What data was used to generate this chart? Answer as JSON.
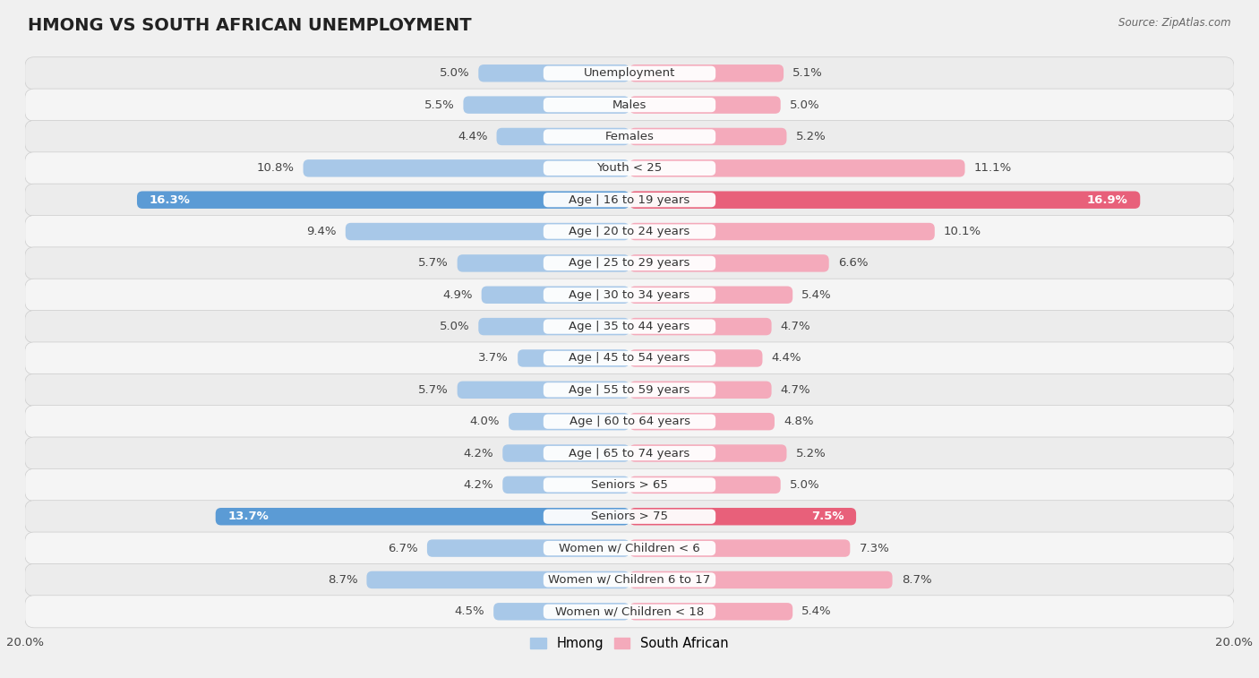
{
  "title": "HMONG VS SOUTH AFRICAN UNEMPLOYMENT",
  "source": "Source: ZipAtlas.com",
  "categories": [
    "Unemployment",
    "Males",
    "Females",
    "Youth < 25",
    "Age | 16 to 19 years",
    "Age | 20 to 24 years",
    "Age | 25 to 29 years",
    "Age | 30 to 34 years",
    "Age | 35 to 44 years",
    "Age | 45 to 54 years",
    "Age | 55 to 59 years",
    "Age | 60 to 64 years",
    "Age | 65 to 74 years",
    "Seniors > 65",
    "Seniors > 75",
    "Women w/ Children < 6",
    "Women w/ Children 6 to 17",
    "Women w/ Children < 18"
  ],
  "hmong": [
    5.0,
    5.5,
    4.4,
    10.8,
    16.3,
    9.4,
    5.7,
    4.9,
    5.0,
    3.7,
    5.7,
    4.0,
    4.2,
    4.2,
    13.7,
    6.7,
    8.7,
    4.5
  ],
  "south_african": [
    5.1,
    5.0,
    5.2,
    11.1,
    16.9,
    10.1,
    6.6,
    5.4,
    4.7,
    4.4,
    4.7,
    4.8,
    5.2,
    5.0,
    7.5,
    7.3,
    8.7,
    5.4
  ],
  "hmong_color": "#A8C8E8",
  "south_african_color": "#F4AABB",
  "hmong_highlight_color": "#5B9BD5",
  "south_african_highlight_color": "#E8607A",
  "highlight_rows": [
    4,
    14
  ],
  "row_colors": [
    "#ECECEC",
    "#F5F5F5"
  ],
  "bar_height": 0.55,
  "xlim": 20.0,
  "title_fontsize": 14,
  "label_fontsize": 9.5,
  "tick_fontsize": 9.5,
  "cat_fontsize": 9.5
}
